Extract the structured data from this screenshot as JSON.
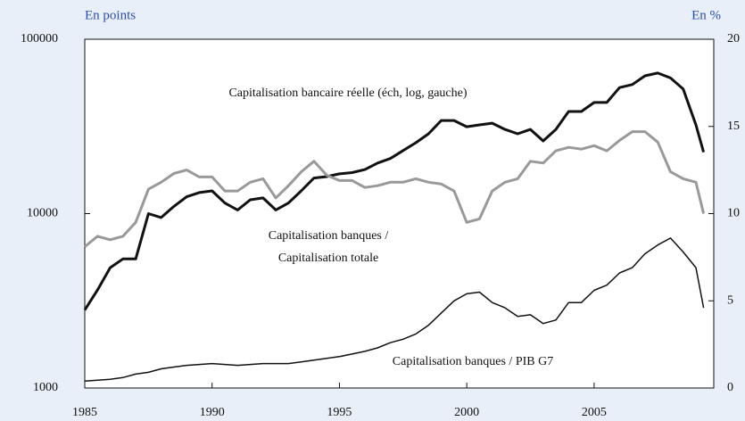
{
  "chart_data": {
    "type": "line",
    "left_unit": "En points",
    "right_unit": "En %",
    "annotations": [
      "Capitalisation bancaire réelle (éch, log, gauche)",
      "Capitalisation banques /",
      "Capitalisation totale",
      "Capitalisation banques / PIB G7"
    ],
    "x": [
      1985,
      1985.5,
      1986,
      1986.5,
      1987,
      1987.5,
      1988,
      1988.5,
      1989,
      1989.5,
      1990,
      1990.5,
      1991,
      1991.5,
      1992,
      1992.5,
      1993,
      1993.5,
      1994,
      1994.5,
      1995,
      1995.5,
      1996,
      1996.5,
      1997,
      1997.5,
      1998,
      1998.5,
      1999,
      1999.5,
      2000,
      2000.5,
      2001,
      2001.5,
      2002,
      2002.5,
      2003,
      2003.5,
      2004,
      2004.5,
      2005,
      2005.5,
      2006,
      2006.5,
      2007,
      2007.5,
      2008,
      2008.5,
      2009,
      2009.3
    ],
    "series": [
      {
        "color": "#111111",
        "line_width": 3,
        "values": [
          2800,
          3650,
          4900,
          5500,
          5500,
          10000,
          9500,
          11000,
          12500,
          13200,
          13500,
          11500,
          10500,
          12000,
          12300,
          10500,
          11500,
          13500,
          16000,
          16300,
          16900,
          17200,
          17900,
          19500,
          20700,
          23000,
          25500,
          28700,
          34200,
          34200,
          31500,
          32300,
          33000,
          30400,
          28700,
          30400,
          26100,
          30400,
          38500,
          38500,
          43400,
          43400,
          52800,
          55000,
          61700,
          64000,
          60000,
          51800,
          32300,
          22500
        ]
      },
      {
        "color": "#999999",
        "line_width": 3,
        "axis": "y2",
        "values": [
          8.1,
          8.7,
          8.5,
          8.7,
          9.5,
          11.4,
          11.8,
          12.3,
          12.5,
          12.1,
          12.1,
          11.3,
          11.3,
          11.8,
          12.0,
          10.9,
          11.6,
          12.4,
          13.0,
          12.2,
          11.9,
          11.9,
          11.5,
          11.6,
          11.8,
          11.8,
          12.0,
          11.8,
          11.7,
          11.3,
          9.5,
          9.7,
          11.3,
          11.8,
          12.0,
          13.0,
          12.9,
          13.6,
          13.8,
          13.7,
          13.9,
          13.6,
          14.2,
          14.7,
          14.7,
          14.1,
          12.4,
          12.0,
          11.8,
          10.0
        ]
      },
      {
        "color": "#111111",
        "line_width": 1.5,
        "axis": "y2",
        "values": [
          0.4,
          0.45,
          0.5,
          0.6,
          0.8,
          0.9,
          1.1,
          1.2,
          1.3,
          1.35,
          1.4,
          1.35,
          1.3,
          1.35,
          1.4,
          1.4,
          1.4,
          1.5,
          1.6,
          1.7,
          1.8,
          1.95,
          2.1,
          2.3,
          2.6,
          2.8,
          3.1,
          3.6,
          4.3,
          5.0,
          5.4,
          5.5,
          4.9,
          4.6,
          4.1,
          4.2,
          3.7,
          3.9,
          4.9,
          4.9,
          5.6,
          5.9,
          6.6,
          6.9,
          7.7,
          8.2,
          8.6,
          7.8,
          6.9,
          4.6
        ]
      }
    ],
    "xlim": [
      1985,
      2009.7
    ],
    "xticks": [
      1985,
      1990,
      1995,
      2000,
      2005
    ],
    "ylim": [
      1000,
      100000
    ],
    "yticks": [
      1000,
      10000,
      100000
    ],
    "log_y": true,
    "y2lim": [
      0,
      20
    ],
    "y2ticks": [
      0,
      5,
      10,
      15,
      20
    ]
  }
}
